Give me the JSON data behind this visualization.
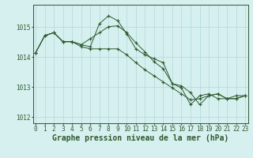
{
  "background_color": "#d6f0f0",
  "grid_color": "#b0d8d8",
  "line_color": "#2d5a2d",
  "xlabel": "Graphe pression niveau de la mer (hPa)",
  "xlabel_fontsize": 7.0,
  "ylim": [
    1011.8,
    1015.75
  ],
  "xlim": [
    -0.3,
    23.3
  ],
  "yticks": [
    1012,
    1013,
    1014,
    1015
  ],
  "xticks": [
    0,
    1,
    2,
    3,
    4,
    5,
    6,
    7,
    8,
    9,
    10,
    11,
    12,
    13,
    14,
    15,
    16,
    17,
    18,
    19,
    20,
    21,
    22,
    23
  ],
  "series1": [
    1014.15,
    1014.72,
    1014.82,
    1014.52,
    1014.52,
    1014.42,
    1014.35,
    1015.12,
    1015.38,
    1015.22,
    1014.78,
    1014.28,
    1014.08,
    1013.95,
    1013.82,
    1013.12,
    1012.98,
    1012.42,
    1012.72,
    1012.78,
    1012.62,
    1012.62,
    1012.72,
    1012.72
  ],
  "series2": [
    1014.15,
    1014.72,
    1014.82,
    1014.52,
    1014.52,
    1014.42,
    1014.62,
    1014.82,
    1015.02,
    1015.05,
    1014.82,
    1014.48,
    1014.18,
    1013.85,
    1013.62,
    1013.12,
    1013.05,
    1012.82,
    1012.42,
    1012.72,
    1012.78,
    1012.62,
    1012.62,
    1012.72
  ],
  "series3": [
    1014.15,
    1014.72,
    1014.82,
    1014.52,
    1014.52,
    1014.35,
    1014.28,
    1014.28,
    1014.28,
    1014.28,
    1014.08,
    1013.82,
    1013.58,
    1013.38,
    1013.18,
    1012.98,
    1012.78,
    1012.58,
    1012.62,
    1012.72,
    1012.78,
    1012.62,
    1012.62,
    1012.72
  ],
  "tick_fontsize": 5.5
}
